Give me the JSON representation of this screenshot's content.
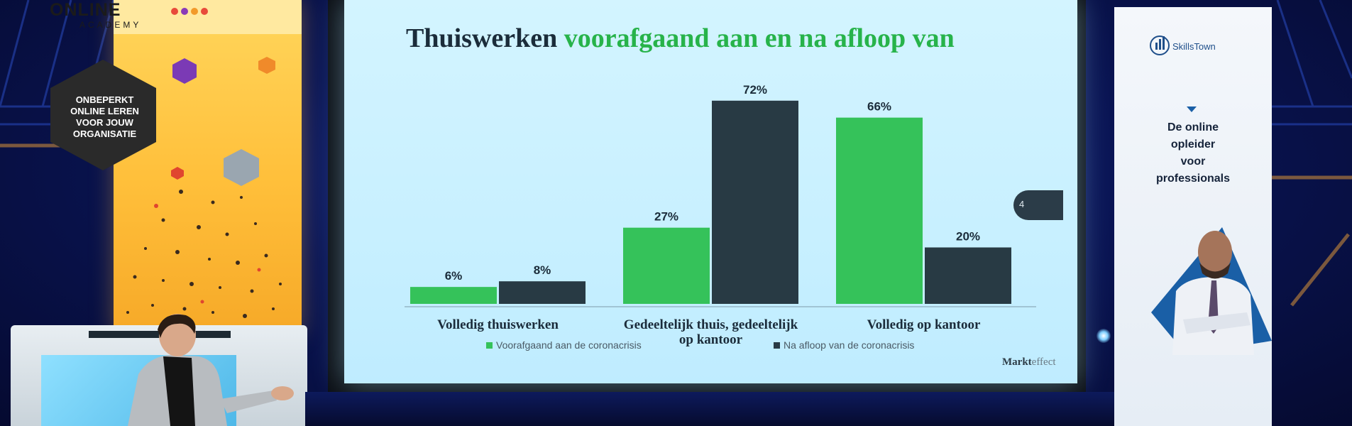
{
  "left_banner": {
    "brand_line1": "ONLINE",
    "brand_line2": "ACADEMY",
    "hex_message": [
      "ONBEPERKT",
      "ONLINE LEREN",
      "VOOR JOUW",
      "ORGANISATIE"
    ]
  },
  "slide": {
    "title_part1": "Thuiswerken ",
    "title_part2": "voorafgaand aan en na afloop van",
    "page_number": "4",
    "logo_prefix": "Markt",
    "logo_suffix": "effect"
  },
  "chart_data": {
    "type": "bar",
    "categories": [
      "Volledig thuiswerken",
      "Gedeeltelijk thuis, gedeeltelijk op kantoor",
      "Volledig op kantoor"
    ],
    "category_lines": [
      [
        "Volledig thuiswerken"
      ],
      [
        "Gedeeltelijk thuis, gedeeltelijk",
        "op kantoor"
      ],
      [
        "Volledig op kantoor"
      ]
    ],
    "series": [
      {
        "name": "Voorafgaand aan de coronacrisis",
        "values": [
          6,
          27,
          66
        ],
        "labels": [
          "6%",
          "27%",
          "66%"
        ],
        "color": "#35c25a"
      },
      {
        "name": "Na afloop van de coronacrisis",
        "values": [
          8,
          72,
          20
        ],
        "labels": [
          "8%",
          "72%",
          "20%"
        ],
        "color": "#283a44"
      }
    ],
    "title": "Thuiswerken voorafgaand aan en na afloop van",
    "xlabel": "",
    "ylabel": "",
    "ylim": [
      0,
      80
    ],
    "grid": false,
    "legend": "bottom"
  },
  "right_banner": {
    "brand": "SkillsTown",
    "tagline": [
      "De online",
      "opleider",
      "voor",
      "professionals"
    ]
  },
  "colors": {
    "green": "#35c25a",
    "dark": "#283a44",
    "banner_yellow": "#ffc23a",
    "hex_dark": "#2a2a2a"
  }
}
